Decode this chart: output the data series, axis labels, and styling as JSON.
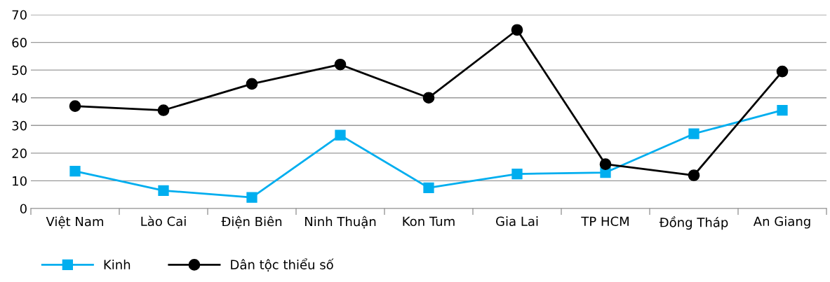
{
  "chart_data": {
    "type": "line",
    "categories": [
      "Việt Nam",
      "Lào Cai",
      "Điện Biên",
      "Ninh Thuận",
      "Kon Tum",
      "Gia Lai",
      "TP HCM",
      "Đồng Tháp",
      "An Giang"
    ],
    "series": [
      {
        "name": "Kinh",
        "color": "#00aeef",
        "marker": "square",
        "values": [
          13.5,
          6.5,
          4,
          26.5,
          7.5,
          12.5,
          13,
          27,
          35.5
        ]
      },
      {
        "name": "Dân tộc thiểu số",
        "color": "#000000",
        "marker": "circle",
        "values": [
          37,
          35.5,
          45,
          52,
          40,
          64.5,
          16,
          12,
          49.5
        ]
      }
    ],
    "ylim": [
      0,
      70
    ],
    "yticks": [
      0,
      10,
      20,
      30,
      40,
      50,
      60,
      70
    ],
    "grid": "y",
    "legend": "bottom left",
    "line_style": "solid"
  }
}
